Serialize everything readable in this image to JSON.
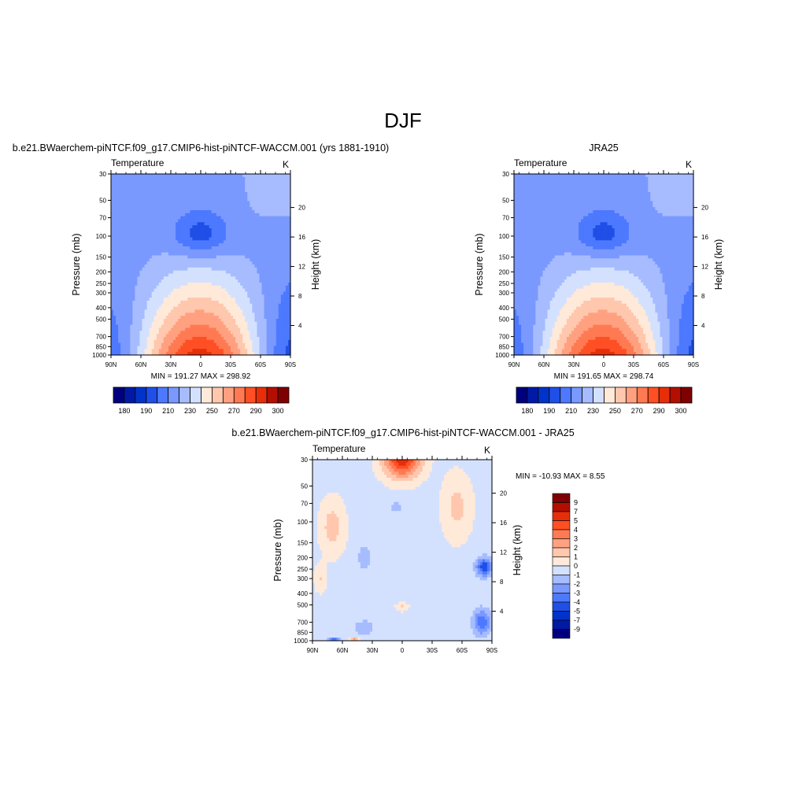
{
  "figure": {
    "title": "DJF"
  },
  "palettes": {
    "abs": [
      "#00007f",
      "#001aa6",
      "#0033c9",
      "#1f4fe6",
      "#4d79ff",
      "#7a99ff",
      "#a6bcff",
      "#d3e1ff",
      "#ffe9d9",
      "#ffc7ad",
      "#ffa180",
      "#ff7a52",
      "#ff4f24",
      "#e62e0a",
      "#b30f00",
      "#7f0000"
    ],
    "diff": [
      "#00007f",
      "#001aa6",
      "#0033c9",
      "#1f4fe6",
      "#4d79ff",
      "#7a99ff",
      "#a6bcff",
      "#d3e1ff",
      "#ffe9d9",
      "#ffc7ad",
      "#ffa180",
      "#ff7a52",
      "#ff4f24",
      "#e62e0a",
      "#b30f00",
      "#7f0000"
    ]
  },
  "axes": {
    "pressure_label": "Pressure (mb)",
    "height_label": "Height (km)",
    "pressure_ticks": [
      "30",
      "50",
      "70",
      "100",
      "150",
      "200",
      "250",
      "300",
      "400",
      "500",
      "700",
      "850",
      "1000"
    ],
    "height_ticks": [
      "20",
      "16",
      "12",
      "8",
      "4"
    ],
    "lat_ticks": [
      "90N",
      "60N",
      "30N",
      "0",
      "30S",
      "60S",
      "90S"
    ]
  },
  "chart_data": [
    {
      "type": "heatmap",
      "title": "b.e21.BWaerchem-piNTCF.f09_g17.CMIP6-hist-piNTCF-WACCM.001 (yrs 1881-1910)",
      "left_label": "Temperature",
      "right_label": "K",
      "stats": "MIN = 191.27  MAX = 298.92",
      "min": 191.27,
      "max": 298.92,
      "xlabel": "",
      "ylabel": "Pressure (mb)",
      "y2label": "Height (km)",
      "x_range": [
        "90N",
        "90S"
      ],
      "y_range": [
        30,
        1000
      ],
      "colorbar": {
        "orientation": "horizontal",
        "labels": [
          "180",
          "190",
          "210",
          "230",
          "250",
          "270",
          "290",
          "300"
        ]
      }
    },
    {
      "type": "heatmap",
      "title": "JRA25",
      "left_label": "Temperature",
      "right_label": "K",
      "stats": "MIN = 191.65  MAX = 298.74",
      "min": 191.65,
      "max": 298.74,
      "xlabel": "",
      "ylabel": "Pressure (mb)",
      "y2label": "Height (km)",
      "x_range": [
        "90N",
        "90S"
      ],
      "y_range": [
        30,
        1000
      ],
      "colorbar": {
        "orientation": "horizontal",
        "labels": [
          "180",
          "190",
          "210",
          "230",
          "250",
          "270",
          "290",
          "300"
        ]
      }
    },
    {
      "type": "heatmap",
      "title": "b.e21.BWaerchem-piNTCF.f09_g17.CMIP6-hist-piNTCF-WACCM.001 - JRA25",
      "left_label": "Temperature",
      "right_label": "K",
      "stats": "MIN = -10.93  MAX =   8.55",
      "min": -10.93,
      "max": 8.55,
      "xlabel": "",
      "ylabel": "Pressure (mb)",
      "y2label": "Height (km)",
      "x_range": [
        "90N",
        "90S"
      ],
      "y_range": [
        30,
        1000
      ],
      "colorbar": {
        "orientation": "vertical",
        "labels": [
          "9",
          "7",
          "5",
          "4",
          "3",
          "2",
          "1",
          "0",
          "-1",
          "-2",
          "-3",
          "-4",
          "-5",
          "-7",
          "-9"
        ]
      }
    }
  ]
}
